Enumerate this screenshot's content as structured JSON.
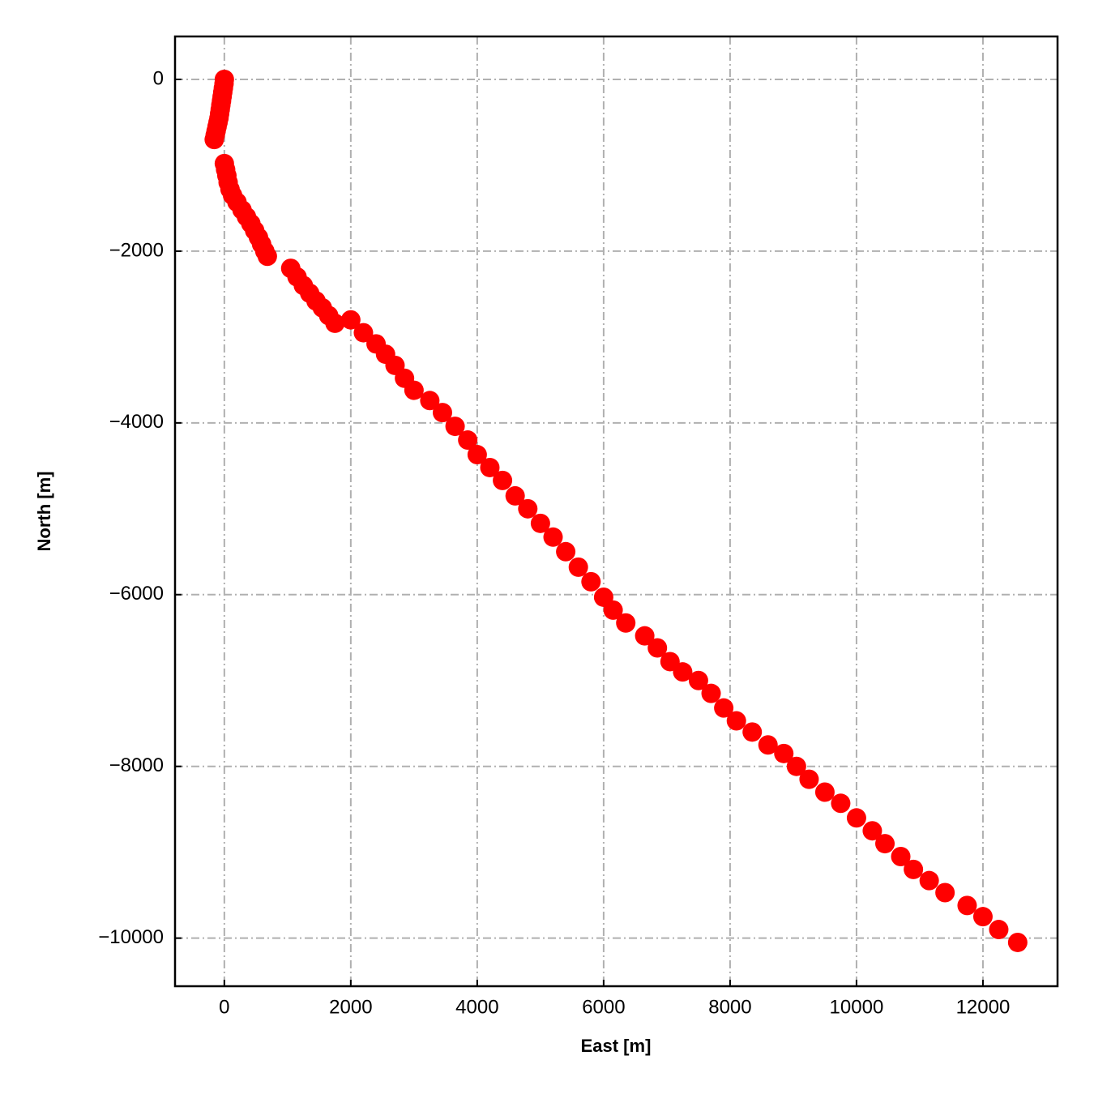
{
  "chart_data": {
    "type": "scatter",
    "xlabel": "East [m]",
    "ylabel": "North [m]",
    "color": "#ff0000",
    "grid": true,
    "xlim": [
      -780,
      13180
    ],
    "ylim": [
      -10560,
      500
    ],
    "xticks": [
      0,
      2000,
      4000,
      6000,
      8000,
      10000,
      12000
    ],
    "yticks": [
      0,
      {
        "value": -2000,
        "label": "−2000"
      },
      {
        "value": -4000,
        "label": "−4000"
      },
      {
        "value": -6000,
        "label": "−6000"
      },
      {
        "value": -8000,
        "label": "−8000"
      },
      {
        "value": -10000,
        "label": "−10000"
      }
    ],
    "x": [
      0,
      -5,
      -15,
      -25,
      -35,
      -45,
      -55,
      -65,
      -75,
      -85,
      -100,
      -115,
      -130,
      -145,
      -160,
      0,
      20,
      40,
      60,
      90,
      130,
      200,
      280,
      350,
      420,
      480,
      540,
      590,
      640,
      680,
      1050,
      1150,
      1250,
      1350,
      1450,
      1550,
      1650,
      1750,
      2000,
      2200,
      2400,
      2550,
      2700,
      2850,
      3000,
      3250,
      3450,
      3650,
      3850,
      4000,
      4200,
      4400,
      4600,
      4800,
      5000,
      5200,
      5400,
      5600,
      5800,
      6000,
      6150,
      6350,
      6650,
      6850,
      7050,
      7250,
      7500,
      7700,
      7900,
      8100,
      8350,
      8600,
      8850,
      9050,
      9250,
      9500,
      9750,
      10000,
      10250,
      10450,
      10700,
      10900,
      11150,
      11400,
      11750,
      12000,
      12250,
      12550
    ],
    "values": [
      0,
      -50,
      -100,
      -150,
      -200,
      -250,
      -300,
      -350,
      -400,
      -450,
      -500,
      -550,
      -600,
      -650,
      -700,
      -980,
      -1050,
      -1120,
      -1200,
      -1280,
      -1350,
      -1430,
      -1520,
      -1600,
      -1680,
      -1760,
      -1840,
      -1920,
      -2000,
      -2060,
      -2200,
      -2300,
      -2400,
      -2490,
      -2580,
      -2660,
      -2750,
      -2840,
      -2800,
      -2950,
      -3080,
      -3200,
      -3330,
      -3480,
      -3620,
      -3740,
      -3880,
      -4040,
      -4200,
      -4370,
      -4520,
      -4670,
      -4850,
      -5000,
      -5170,
      -5330,
      -5500,
      -5680,
      -5850,
      -6030,
      -6180,
      -6330,
      -6480,
      -6620,
      -6780,
      -6900,
      -7000,
      -7150,
      -7320,
      -7470,
      -7600,
      -7750,
      -7850,
      -8000,
      -8150,
      -8300,
      -8430,
      -8600,
      -8750,
      -8900,
      -9050,
      -9200,
      -9330,
      -9470,
      -9620,
      -9750,
      -9900,
      -10050
    ]
  }
}
